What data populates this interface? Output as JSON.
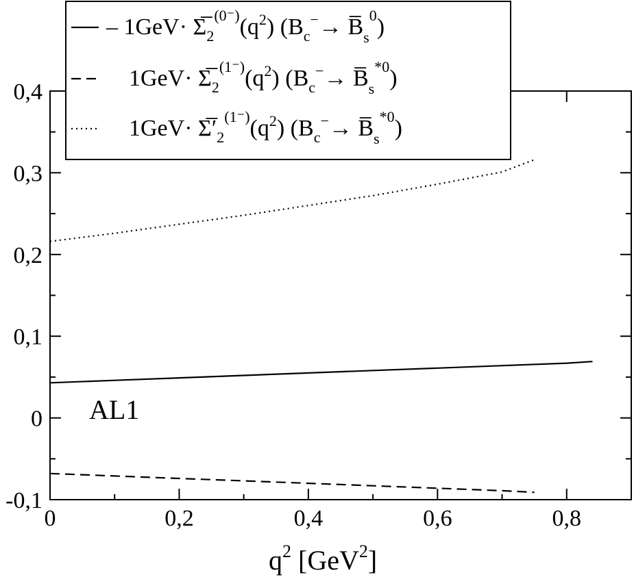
{
  "chart_data": {
    "type": "line",
    "xlabel": "q",
    "xlabel_sup": "2",
    "xlabel_unit_open": " [GeV",
    "xlabel_unit_sup": "2",
    "xlabel_unit_close": "]",
    "xlim": [
      0,
      0.9
    ],
    "ylim": [
      -0.1,
      0.4
    ],
    "x_ticks": [
      0,
      0.2,
      0.4,
      0.6,
      0.8
    ],
    "x_tick_labels": [
      "0",
      "0,2",
      "0,4",
      "0,6",
      "0,8"
    ],
    "y_ticks": [
      -0.1,
      0,
      0.1,
      0.2,
      0.3,
      0.4
    ],
    "y_tick_labels": [
      "-0,1",
      "0",
      "0,1",
      "0,2",
      "0,3",
      "0,4"
    ],
    "grid": false,
    "legend_placement": "top",
    "annotation": "AL1",
    "series": [
      {
        "key": "solid",
        "style": "solid",
        "color": "#000000",
        "x": [
          0,
          0.1,
          0.2,
          0.3,
          0.4,
          0.5,
          0.6,
          0.7,
          0.8,
          0.84
        ],
        "y": [
          0.043,
          0.046,
          0.049,
          0.052,
          0.055,
          0.058,
          0.061,
          0.064,
          0.067,
          0.069
        ]
      },
      {
        "key": "dashed",
        "style": "dashed",
        "color": "#000000",
        "x": [
          0,
          0.1,
          0.2,
          0.3,
          0.4,
          0.5,
          0.6,
          0.7,
          0.75
        ],
        "y": [
          -0.068,
          -0.071,
          -0.074,
          -0.077,
          -0.08,
          -0.083,
          -0.086,
          -0.089,
          -0.091
        ]
      },
      {
        "key": "dotted",
        "style": "dotted",
        "color": "#000000",
        "x": [
          0,
          0.1,
          0.2,
          0.3,
          0.4,
          0.5,
          0.6,
          0.7,
          0.75
        ],
        "y": [
          0.216,
          0.226,
          0.237,
          0.248,
          0.26,
          0.272,
          0.286,
          0.301,
          0.316
        ]
      }
    ],
    "legend": [
      {
        "key": "solid",
        "prefix": "– 1GeV· ",
        "symbol": "Σ̅",
        "sub": "2",
        "sup": "(0⁻)",
        "arg": "(q",
        "arg_sup": "2",
        "arg_close": ")  (B",
        "b_sub": "c",
        "b_sup": "−",
        "arrow": "→  ",
        "target": "B̅",
        "t_sub": "s",
        "t_sup": "0",
        "close": ")"
      },
      {
        "key": "dashed",
        "prefix": "1GeV· ",
        "symbol": "Σ̅",
        "sub": "2",
        "sup": "(1⁻)",
        "arg": "(q",
        "arg_sup": "2",
        "arg_close": ")  (B",
        "b_sub": "c",
        "b_sup": "−",
        "arrow": "→  ",
        "target": "B̅",
        "t_sub": "s",
        "t_sup": "*0",
        "close": ")"
      },
      {
        "key": "dotted",
        "prefix": "1GeV· ",
        "symbol": "Σ̅′",
        "sub": "2",
        "sup": "(1⁻)",
        "arg": "(q",
        "arg_sup": "2",
        "arg_close": ")  (B",
        "b_sub": "c",
        "b_sup": "−",
        "arrow": "→  ",
        "target": "B̅",
        "t_sub": "s",
        "t_sup": "*0",
        "close": ")"
      }
    ]
  }
}
